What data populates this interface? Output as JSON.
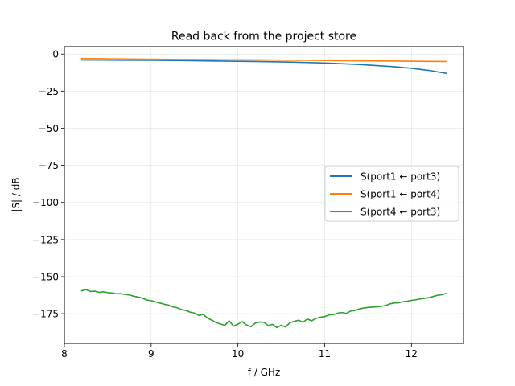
{
  "chart_data": {
    "type": "line",
    "title": "Read back from the project store",
    "xlabel": "f / GHz",
    "ylabel": "|S| / dB",
    "xlim": [
      8.0,
      12.6
    ],
    "ylim": [
      -195,
      5
    ],
    "xticks": [
      8,
      9,
      10,
      11,
      12
    ],
    "yticks": [
      0,
      -25,
      -50,
      -75,
      -100,
      -125,
      -150,
      -175
    ],
    "xtick_labels": [
      "8",
      "9",
      "10",
      "11",
      "12"
    ],
    "ytick_labels": [
      "0",
      "−25",
      "−50",
      "−75",
      "−100",
      "−125",
      "−150",
      "−175"
    ],
    "grid": true,
    "legend_position": "center-right",
    "series": [
      {
        "name": "S(port1 ← port3)",
        "color": "#1f77b4",
        "x": [
          8.2,
          8.6,
          9.0,
          9.4,
          9.8,
          10.2,
          10.6,
          11.0,
          11.4,
          11.8,
          12.0,
          12.2,
          12.4
        ],
        "y": [
          -4.0,
          -4.1,
          -4.2,
          -4.4,
          -4.7,
          -5.0,
          -5.4,
          -6.0,
          -7.0,
          -8.5,
          -9.6,
          -11.0,
          -13.0
        ]
      },
      {
        "name": "S(port1 ← port4)",
        "color": "#ff7f0e",
        "x": [
          8.2,
          8.6,
          9.0,
          9.4,
          9.8,
          10.2,
          10.6,
          11.0,
          11.4,
          11.8,
          12.2,
          12.4
        ],
        "y": [
          -3.0,
          -3.2,
          -3.4,
          -3.6,
          -3.8,
          -3.9,
          -4.1,
          -4.3,
          -4.5,
          -4.7,
          -4.9,
          -5.0
        ]
      },
      {
        "name": "S(port4 ← port3)",
        "color": "#2ca02c",
        "x": [
          8.2,
          8.25,
          8.3,
          8.35,
          8.4,
          8.45,
          8.5,
          8.55,
          8.6,
          8.65,
          8.7,
          8.75,
          8.8,
          8.85,
          8.9,
          8.95,
          9.0,
          9.05,
          9.1,
          9.15,
          9.2,
          9.25,
          9.3,
          9.35,
          9.4,
          9.45,
          9.5,
          9.55,
          9.6,
          9.65,
          9.7,
          9.75,
          9.8,
          9.85,
          9.9,
          9.95,
          10.0,
          10.05,
          10.1,
          10.15,
          10.2,
          10.25,
          10.3,
          10.35,
          10.4,
          10.45,
          10.5,
          10.55,
          10.6,
          10.65,
          10.7,
          10.75,
          10.8,
          10.85,
          10.9,
          10.95,
          11.0,
          11.05,
          11.1,
          11.15,
          11.2,
          11.25,
          11.3,
          11.35,
          11.4,
          11.45,
          11.5,
          11.55,
          11.6,
          11.65,
          11.7,
          11.75,
          11.8,
          11.85,
          11.9,
          11.95,
          12.0,
          12.05,
          12.1,
          12.15,
          12.2,
          12.25,
          12.3,
          12.35,
          12.4
        ],
        "y": [
          -159.5,
          -158.8,
          -160.0,
          -159.8,
          -160.6,
          -160.2,
          -160.8,
          -161.0,
          -161.6,
          -161.5,
          -162.0,
          -162.4,
          -163.2,
          -163.8,
          -164.5,
          -165.8,
          -166.2,
          -167.0,
          -167.8,
          -168.6,
          -169.2,
          -170.4,
          -171.0,
          -172.2,
          -172.8,
          -174.0,
          -174.6,
          -176.2,
          -175.4,
          -178.0,
          -179.4,
          -181.0,
          -182.0,
          -182.8,
          -179.8,
          -183.4,
          -182.0,
          -180.4,
          -182.6,
          -183.8,
          -181.4,
          -180.6,
          -180.8,
          -183.0,
          -182.2,
          -184.4,
          -182.8,
          -184.0,
          -181.0,
          -180.2,
          -179.4,
          -180.8,
          -178.6,
          -179.8,
          -178.2,
          -177.4,
          -177.0,
          -175.8,
          -175.6,
          -174.6,
          -174.2,
          -174.8,
          -173.2,
          -172.8,
          -171.8,
          -171.2,
          -170.8,
          -170.6,
          -170.4,
          -170.0,
          -169.6,
          -168.4,
          -167.8,
          -167.6,
          -167.0,
          -166.6,
          -166.0,
          -165.6,
          -165.0,
          -164.6,
          -164.2,
          -163.4,
          -162.6,
          -162.2,
          -161.4
        ]
      }
    ]
  }
}
